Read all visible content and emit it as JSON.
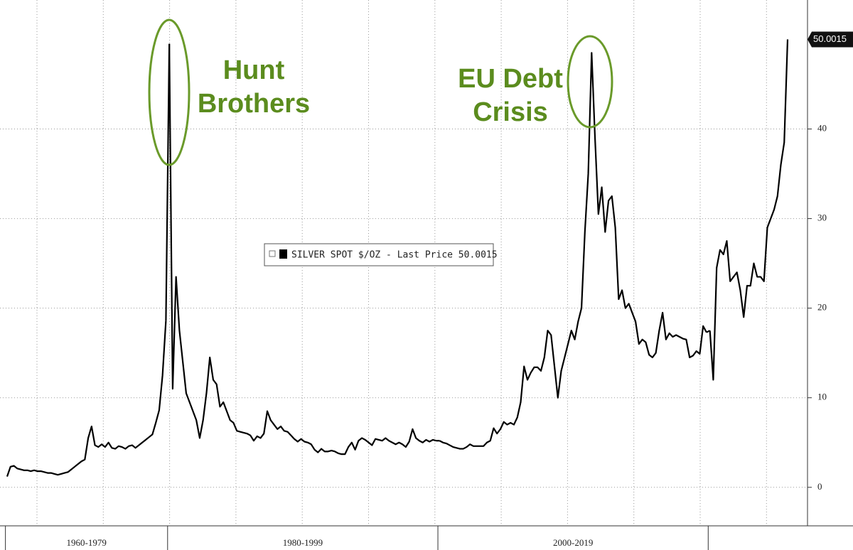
{
  "chart_data": {
    "type": "line",
    "series": [
      {
        "name": "SILVER SPOT $/OZ - Last Price 50.0015",
        "color": "#000000",
        "segments": [
          {
            "label": "1960-1979",
            "values": [
              1.2,
              2.3,
              2.4,
              2.1,
              2.0,
              1.9,
              1.9,
              1.8,
              1.9,
              1.8,
              1.8,
              1.7,
              1.6,
              1.6,
              1.5,
              1.4,
              1.5,
              1.6,
              1.7,
              2.0,
              2.3,
              2.6,
              2.9,
              3.1,
              5.5,
              6.8,
              4.7,
              4.5,
              4.8,
              4.5,
              5.0,
              4.4,
              4.3,
              4.6,
              4.5,
              4.3,
              4.6,
              4.7,
              4.4,
              4.7,
              5.0,
              5.3,
              5.6,
              5.9,
              7.2,
              8.6,
              12.5,
              18.6
            ]
          },
          {
            "label": "1980-1999",
            "values": [
              49.5,
              11.0,
              23.5,
              17.5,
              14.0,
              10.5,
              9.5,
              8.5,
              7.5,
              5.5,
              7.5,
              10.5,
              14.5,
              12.0,
              11.5,
              9.0,
              9.5,
              8.5,
              7.5,
              7.2,
              6.3,
              6.2,
              6.1,
              6.0,
              5.8,
              5.2,
              5.7,
              5.5,
              6.0,
              8.5,
              7.5,
              7.0,
              6.5,
              6.8,
              6.3,
              6.2,
              5.8,
              5.4,
              5.1,
              5.4,
              5.1,
              5.0,
              4.8,
              4.2,
              3.9,
              4.3,
              4.0,
              4.0,
              4.1,
              4.0,
              3.8,
              3.7,
              3.7,
              4.5,
              5.0,
              4.2,
              5.2,
              5.5,
              5.3,
              5.0,
              4.7,
              5.4,
              5.3,
              5.2,
              5.5,
              5.2,
              5.0,
              4.8,
              5.0,
              4.8,
              4.5,
              5.1,
              6.5,
              5.5,
              5.2,
              5.0,
              5.3,
              5.1,
              5.3,
              5.2
            ]
          },
          {
            "label": "2000-2019",
            "values": [
              5.2,
              5.0,
              4.9,
              4.7,
              4.5,
              4.4,
              4.3,
              4.3,
              4.5,
              4.8,
              4.6,
              4.6,
              4.6,
              4.6,
              5.0,
              5.2,
              6.6,
              6.0,
              6.5,
              7.3,
              7.0,
              7.2,
              7.0,
              7.8,
              9.5,
              13.5,
              12.0,
              12.8,
              13.4,
              13.4,
              13.0,
              14.5,
              17.5,
              17.0,
              13.5,
              10.0,
              13.0,
              14.5,
              16.0,
              17.5,
              16.5,
              18.5,
              20.0,
              28.5,
              35.0,
              48.5,
              39.0,
              30.5,
              33.5,
              28.5,
              32.0,
              32.5,
              29.0,
              21.0,
              22.0,
              20.0,
              20.5,
              19.5,
              18.5,
              16.0,
              16.5,
              16.2,
              14.8,
              14.5,
              15.0,
              17.5,
              19.5,
              16.5,
              17.2,
              16.8,
              17.0,
              16.8,
              16.6,
              16.5,
              14.5,
              14.7,
              15.2,
              14.9,
              18.0,
              17.3
            ]
          },
          {
            "label": null,
            "values": [
              17.5,
              12.0,
              24.5,
              26.5,
              26.0,
              27.5,
              23.0,
              23.5,
              24.0,
              22.0,
              19.0,
              22.5,
              22.5,
              25.0,
              23.5,
              23.5,
              23.0,
              29.0,
              30.0,
              31.0,
              32.5,
              36.0,
              38.5,
              50.0015
            ]
          }
        ]
      }
    ],
    "ylim": [
      -4.3,
      54.4
    ],
    "yticks": [
      0,
      10,
      20,
      30,
      40
    ],
    "grid": true,
    "legend": "center",
    "annotations": [
      {
        "lines": [
          "Hunt",
          "Brothers"
        ],
        "color": "#5b8c1e"
      },
      {
        "lines": [
          "EU Debt",
          "Crisis"
        ],
        "color": "#5b8c1e"
      }
    ]
  }
}
